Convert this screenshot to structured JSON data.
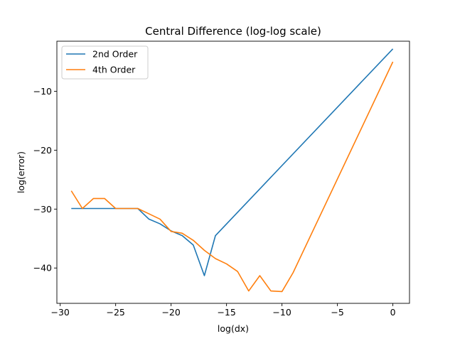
{
  "chart_data": {
    "type": "line",
    "title": "Central Difference (log-log scale)",
    "xlabel": "log(dx)",
    "ylabel": "log(error)",
    "xlim": [
      -30.3,
      1.5
    ],
    "ylim": [
      -46,
      -1.5
    ],
    "xticks": [
      -30,
      -25,
      -20,
      -15,
      -10,
      -5,
      0
    ],
    "xtick_labels": [
      "−30",
      "−25",
      "−20",
      "−15",
      "−10",
      "−5",
      "0"
    ],
    "yticks": [
      -10,
      -20,
      -30,
      -40
    ],
    "ytick_labels": [
      "−10",
      "−20",
      "−30",
      "−40"
    ],
    "grid": false,
    "legend_position": "top-left",
    "series": [
      {
        "name": "2nd Order",
        "color": "#1f77b4",
        "x": [
          -29,
          -28,
          -27,
          -26,
          -25,
          -24,
          -23,
          -22,
          -21,
          -20,
          -19,
          -18,
          -17,
          -16,
          0
        ],
        "y": [
          -29.9,
          -29.9,
          -29.9,
          -29.9,
          -29.9,
          -29.9,
          -29.9,
          -31.7,
          -32.5,
          -33.7,
          -34.5,
          -36.1,
          -41.3,
          -34.5,
          -2.8
        ]
      },
      {
        "name": "4th Order",
        "color": "#ff7f0e",
        "x": [
          -29,
          -28,
          -27,
          -26,
          -25,
          -24,
          -23,
          -22,
          -21,
          -20,
          -19,
          -18,
          -17,
          -16,
          -15,
          -14,
          -13,
          -12,
          -11,
          -10,
          -9,
          0
        ],
        "y": [
          -26.9,
          -29.9,
          -28.2,
          -28.2,
          -29.9,
          -29.9,
          -29.9,
          -30.8,
          -31.7,
          -33.8,
          -34.1,
          -35.3,
          -37.0,
          -38.4,
          -39.3,
          -40.6,
          -43.9,
          -41.3,
          -43.9,
          -44.0,
          -40.8,
          -5.0
        ]
      }
    ]
  }
}
